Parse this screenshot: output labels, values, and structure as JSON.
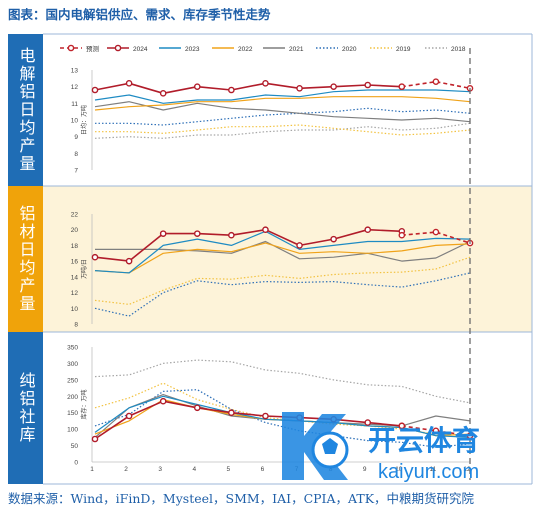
{
  "title": "图表：国内电解铝供应、需求、库存季节性走势",
  "source": "数据来源：Wind，iFinD，Mysteel，SMM，IAI，CPIA，ATK，中粮期货研究院",
  "watermark": {
    "main": "开云体育",
    "sub": "kaiyun.com"
  },
  "colors": {
    "panel1_label_bg": "#1f6db5",
    "panel2_label_bg": "#f0a30a",
    "panel3_label_bg": "#1f6db5",
    "panel2_bg": "#fdf3d9"
  },
  "legend": [
    {
      "name": "预测",
      "color": "#c0232b",
      "style": "dash-marker"
    },
    {
      "name": "2024",
      "color": "#b11c2a",
      "style": "solid-marker"
    },
    {
      "name": "2023",
      "color": "#1e8bc3",
      "style": "solid"
    },
    {
      "name": "2022",
      "color": "#f0a31a",
      "style": "solid"
    },
    {
      "name": "2021",
      "color": "#7f7f7f",
      "style": "solid"
    },
    {
      "name": "2020",
      "color": "#2d6fb7",
      "style": "dotted"
    },
    {
      "name": "2019",
      "color": "#f2c240",
      "style": "dotted"
    },
    {
      "name": "2018",
      "color": "#a6a6a6",
      "style": "dotted"
    }
  ],
  "chart_data": [
    {
      "type": "line",
      "label": "电解铝日均产量",
      "ylabel": "日均：万吨",
      "ylim": [
        7,
        13
      ],
      "yticks": [
        7,
        8,
        9,
        10,
        11,
        12,
        13
      ],
      "x": [
        1,
        2,
        3,
        4,
        5,
        6,
        7,
        8,
        9,
        10,
        11,
        12
      ],
      "series": [
        {
          "name": "2018",
          "values": [
            8.9,
            9.0,
            8.9,
            9.1,
            9.1,
            9.3,
            9.4,
            9.4,
            9.6,
            9.4,
            9.5,
            9.8
          ]
        },
        {
          "name": "2019",
          "values": [
            9.3,
            9.3,
            9.2,
            9.4,
            9.6,
            9.6,
            9.7,
            9.5,
            9.3,
            9.1,
            9.2,
            9.4
          ]
        },
        {
          "name": "2020",
          "values": [
            9.8,
            9.8,
            9.7,
            9.9,
            10.1,
            10.3,
            10.4,
            10.5,
            10.7,
            10.5,
            10.6,
            10.4
          ]
        },
        {
          "name": "2021",
          "values": [
            10.8,
            11.1,
            10.6,
            11.0,
            10.7,
            10.6,
            10.4,
            10.2,
            10.1,
            10.0,
            10.1,
            9.9
          ]
        },
        {
          "name": "2022",
          "values": [
            10.6,
            10.8,
            10.9,
            11.1,
            11.1,
            11.3,
            11.3,
            11.4,
            11.4,
            11.4,
            11.3,
            11.1
          ]
        },
        {
          "name": "2023",
          "values": [
            11.2,
            11.5,
            11.0,
            11.2,
            11.2,
            11.5,
            11.4,
            11.7,
            11.8,
            11.8,
            11.8,
            11.7
          ]
        },
        {
          "name": "2024",
          "values": [
            11.8,
            12.2,
            11.6,
            12.0,
            11.8,
            12.2,
            11.9,
            12.0,
            12.1,
            12.0,
            null,
            null
          ]
        },
        {
          "name": "预测",
          "values": [
            null,
            null,
            null,
            null,
            null,
            null,
            null,
            null,
            null,
            12.0,
            12.3,
            11.9
          ]
        }
      ]
    },
    {
      "type": "line",
      "label": "铝材日均产量",
      "ylabel": "万吨/日",
      "ylim": [
        8,
        22
      ],
      "yticks": [
        8,
        10,
        12,
        14,
        16,
        18,
        20,
        22
      ],
      "x": [
        1,
        2,
        3,
        4,
        5,
        6,
        7,
        8,
        9,
        10,
        11,
        12
      ],
      "series": [
        {
          "name": "2018",
          "values": [
            null,
            null,
            null,
            null,
            null,
            null,
            null,
            null,
            null,
            null,
            null,
            null
          ]
        },
        {
          "name": "2019",
          "values": [
            11.0,
            10.5,
            12.3,
            13.8,
            13.7,
            14.2,
            13.8,
            14.3,
            14.5,
            14.6,
            15.0,
            16.5
          ]
        },
        {
          "name": "2020",
          "values": [
            10.0,
            9.0,
            12.0,
            13.5,
            13.0,
            13.4,
            13.3,
            13.4,
            13.0,
            12.7,
            13.5,
            14.5
          ]
        },
        {
          "name": "2021",
          "values": [
            17.5,
            17.5,
            17.5,
            17.3,
            17.0,
            18.5,
            16.3,
            16.5,
            17.0,
            16.0,
            16.4,
            18.5
          ]
        },
        {
          "name": "2022",
          "values": [
            14.8,
            14.5,
            17.0,
            17.5,
            17.2,
            18.3,
            17.0,
            17.2,
            17.0,
            17.3,
            18.0,
            18.2
          ]
        },
        {
          "name": "2023",
          "values": [
            14.8,
            14.5,
            18.0,
            18.8,
            18.0,
            19.8,
            17.5,
            18.0,
            18.5,
            18.5,
            18.9,
            18.8
          ]
        },
        {
          "name": "2024",
          "values": [
            16.5,
            16.0,
            19.5,
            19.5,
            19.3,
            20.0,
            18.0,
            18.8,
            20.0,
            19.8,
            null,
            null
          ]
        },
        {
          "name": "预测",
          "values": [
            null,
            null,
            null,
            null,
            null,
            null,
            null,
            null,
            null,
            19.3,
            19.7,
            18.3
          ]
        }
      ]
    },
    {
      "type": "line",
      "label": "纯铝社库",
      "ylabel": "库存：万吨",
      "ylim": [
        0,
        350
      ],
      "yticks": [
        0,
        50,
        100,
        150,
        200,
        250,
        300,
        350
      ],
      "xticks": [
        1,
        2,
        3,
        4,
        5,
        6,
        7,
        8,
        9,
        10,
        11,
        12
      ],
      "x": [
        1,
        2,
        3,
        4,
        5,
        6,
        7,
        8,
        9,
        10,
        11,
        12
      ],
      "series": [
        {
          "name": "2018",
          "values": [
            260,
            265,
            300,
            310,
            305,
            280,
            270,
            250,
            235,
            230,
            200,
            180
          ]
        },
        {
          "name": "2019",
          "values": [
            165,
            195,
            240,
            190,
            160,
            135,
            125,
            115,
            110,
            100,
            85,
            80
          ]
        },
        {
          "name": "2020",
          "values": [
            110,
            145,
            215,
            220,
            160,
            120,
            95,
            80,
            65,
            60,
            45,
            55
          ]
        },
        {
          "name": "2021",
          "values": [
            75,
            165,
            205,
            170,
            140,
            130,
            125,
            120,
            115,
            110,
            140,
            125
          ]
        },
        {
          "name": "2022",
          "values": [
            85,
            125,
            190,
            165,
            145,
            130,
            125,
            120,
            110,
            105,
            80,
            85
          ]
        },
        {
          "name": "2023",
          "values": [
            90,
            165,
            200,
            175,
            150,
            130,
            125,
            120,
            110,
            105,
            80,
            75
          ]
        },
        {
          "name": "2024",
          "values": [
            70,
            140,
            185,
            165,
            150,
            140,
            135,
            130,
            120,
            110,
            null,
            null
          ]
        },
        {
          "name": "预测",
          "values": [
            null,
            null,
            null,
            null,
            null,
            null,
            null,
            null,
            null,
            110,
            95,
            80
          ]
        }
      ]
    }
  ]
}
